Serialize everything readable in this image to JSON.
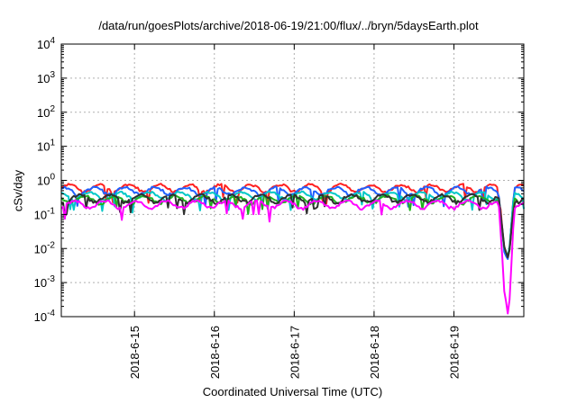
{
  "chart_data": {
    "type": "line",
    "title": "/data/run/goesPlots/archive/2018-06-19/21:00/flux/../bryn/5daysEarth.plot",
    "xlabel": "Coordinated Universal Time (UTC)",
    "ylabel": "cSv/day",
    "yscale": "log",
    "ylim": [
      0.0001,
      10000
    ],
    "y_ticks": [
      {
        "value": 0.0001,
        "base": "10",
        "exp": "-4"
      },
      {
        "value": 0.001,
        "base": "10",
        "exp": "-3"
      },
      {
        "value": 0.01,
        "base": "10",
        "exp": "-2"
      },
      {
        "value": 0.1,
        "base": "10",
        "exp": "-1"
      },
      {
        "value": 1,
        "base": "10",
        "exp": "0"
      },
      {
        "value": 10,
        "base": "10",
        "exp": "1"
      },
      {
        "value": 100,
        "base": "10",
        "exp": "2"
      },
      {
        "value": 1000,
        "base": "10",
        "exp": "3"
      },
      {
        "value": 10000,
        "base": "10",
        "exp": "4"
      }
    ],
    "xlim": [
      "2018-06-14T02:00",
      "2018-06-19T21:00"
    ],
    "x_ticks": [
      {
        "value": "2018-06-15T00:00",
        "label": "2018-6-15"
      },
      {
        "value": "2018-06-16T00:00",
        "label": "2018-6-16"
      },
      {
        "value": "2018-06-17T00:00",
        "label": "2018-6-17"
      },
      {
        "value": "2018-06-18T00:00",
        "label": "2018-6-18"
      },
      {
        "value": "2018-06-19T00:00",
        "label": "2018-6-19"
      }
    ],
    "grid": true,
    "series": [
      {
        "color": "#ff2020",
        "level": 0.6
      },
      {
        "color": "#2060ff",
        "level": 0.5
      },
      {
        "color": "#00c8c8",
        "level": 0.36
      },
      {
        "color": "#20b020",
        "level": 0.28
      },
      {
        "color": "#303030",
        "level": 0.3
      },
      {
        "color": "#ff00ff",
        "level": 0.2
      }
    ],
    "events": [
      {
        "time": "2018-06-19T15:00",
        "min": 0.001
      },
      {
        "time": "2018-06-19T16:30",
        "min": 0.00015
      }
    ]
  }
}
